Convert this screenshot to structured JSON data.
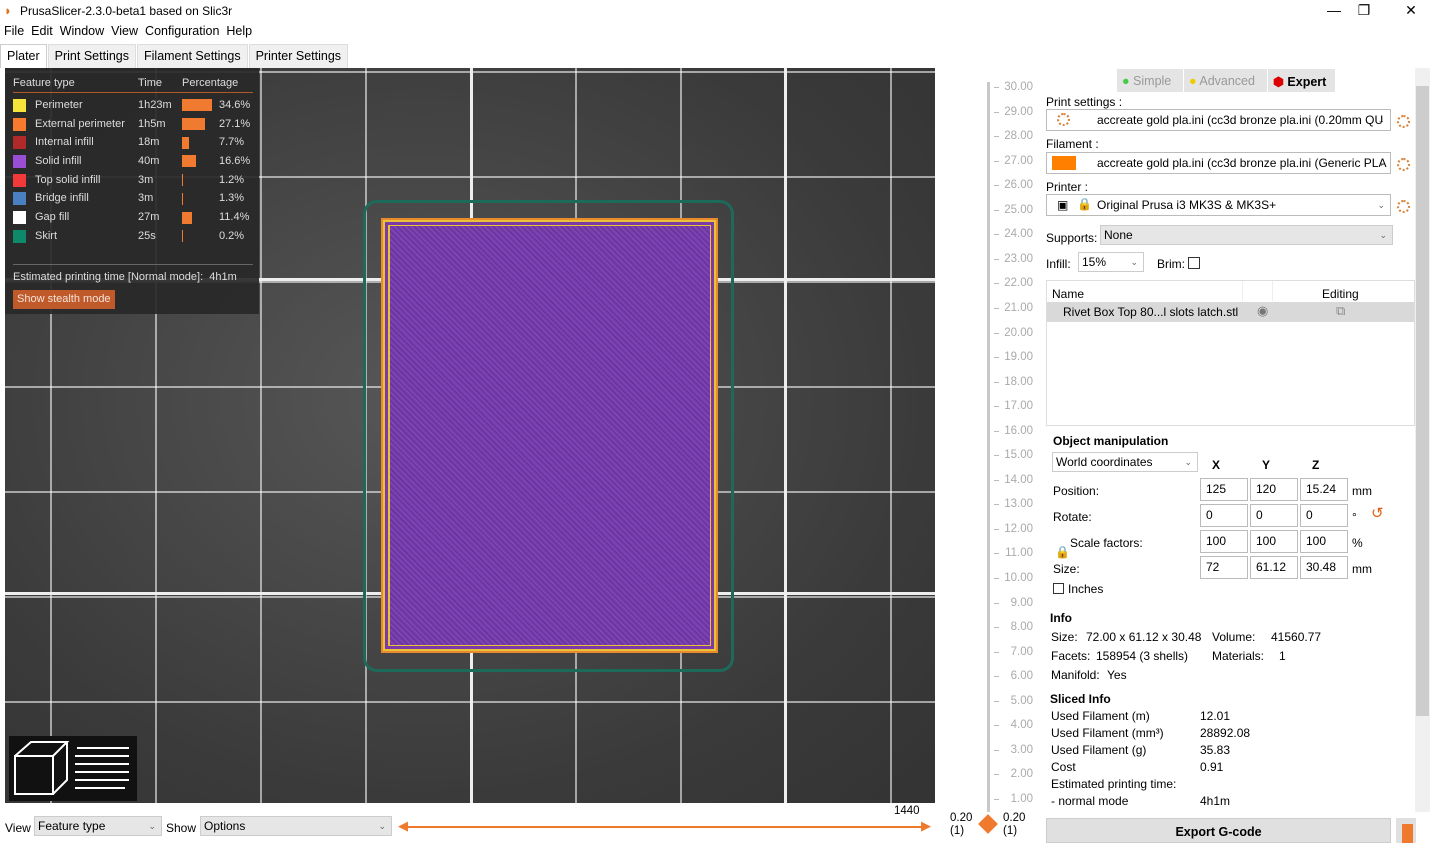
{
  "window": {
    "title": "PrusaSlicer-2.3.0-beta1 based on Slic3r",
    "minimize": "—",
    "maximize": "❐",
    "close": "✕"
  },
  "menu": [
    "File",
    "Edit",
    "Window",
    "View",
    "Configuration",
    "Help"
  ],
  "tabs": [
    "Plater",
    "Print Settings",
    "Filament Settings",
    "Printer Settings"
  ],
  "legend": {
    "headers": [
      "Feature type",
      "Time",
      "Percentage"
    ],
    "rows": [
      {
        "name": "Perimeter",
        "time": "1h23m",
        "pct": "34.6%",
        "value": 34.6,
        "color": "#f5e43a"
      },
      {
        "name": "External perimeter",
        "time": "1h5m",
        "pct": "27.1%",
        "value": 27.1,
        "color": "#f77b2e"
      },
      {
        "name": "Internal infill",
        "time": "18m",
        "pct": "7.7%",
        "value": 7.7,
        "color": "#b02a2a"
      },
      {
        "name": "Solid infill",
        "time": "40m",
        "pct": "16.6%",
        "value": 16.6,
        "color": "#9a4ed6"
      },
      {
        "name": "Top solid infill",
        "time": "3m",
        "pct": "1.2%",
        "value": 1.2,
        "color": "#f23a3a"
      },
      {
        "name": "Bridge infill",
        "time": "3m",
        "pct": "1.3%",
        "value": 1.3,
        "color": "#4a7fc2"
      },
      {
        "name": "Gap fill",
        "time": "27m",
        "pct": "11.4%",
        "value": 11.4,
        "color": "#ffffff"
      },
      {
        "name": "Skirt",
        "time": "25s",
        "pct": "0.2%",
        "value": 0.2,
        "color": "#0e8a6a"
      }
    ],
    "estimated_label": "Estimated printing time [Normal mode]:",
    "estimated_value": "4h1m",
    "stealth_button": "Show stealth mode"
  },
  "bottom": {
    "view_label": "View",
    "view_value": "Feature type",
    "show_label": "Show",
    "show_value": "Options",
    "slider_max": "1440"
  },
  "ruler": {
    "labels": [
      "30.00",
      "29.00",
      "28.00",
      "27.00",
      "26.00",
      "25.00",
      "24.00",
      "23.00",
      "22.00",
      "21.00",
      "20.00",
      "19.00",
      "18.00",
      "17.00",
      "16.00",
      "15.00",
      "14.00",
      "13.00",
      "12.00",
      "11.00",
      "10.00",
      "9.00",
      "8.00",
      "7.00",
      "6.00",
      "5.00",
      "4.00",
      "3.00",
      "2.00",
      "1.00"
    ],
    "low_left": "0.20",
    "low_left_sub": "(1)",
    "low_right": "0.20",
    "low_right_sub": "(1)"
  },
  "mode": {
    "simple": "Simple",
    "advanced": "Advanced",
    "expert": "Expert"
  },
  "print_settings": {
    "label": "Print settings :",
    "value": "accreate gold pla.ini (cc3d bronze pla.ini (0.20mm QU"
  },
  "filament": {
    "label": "Filament :",
    "value": "accreate gold pla.ini (cc3d bronze pla.ini (Generic PLA",
    "color": "#ff7f00"
  },
  "printer": {
    "label": "Printer :",
    "value": "Original Prusa i3 MK3S & MK3S+"
  },
  "supports": {
    "label": "Supports:",
    "value": "None"
  },
  "infill": {
    "label": "Infill:",
    "value": "15%"
  },
  "brim": {
    "label": "Brim:",
    "checked": false
  },
  "objects": {
    "col_name": "Name",
    "col_editing": "Editing",
    "items": [
      {
        "name": "Rivet Box Top 80...l slots latch.stl"
      }
    ]
  },
  "manip": {
    "title": "Object manipulation",
    "coords": "World coordinates",
    "x": "X",
    "y": "Y",
    "z": "Z",
    "position": {
      "label": "Position:",
      "values": [
        "125",
        "120",
        "15.24"
      ],
      "unit": "mm"
    },
    "rotate": {
      "label": "Rotate:",
      "values": [
        "0",
        "0",
        "0"
      ],
      "unit": "°"
    },
    "scale": {
      "label": "Scale factors:",
      "values": [
        "100",
        "100",
        "100"
      ],
      "unit": "%"
    },
    "size": {
      "label": "Size:",
      "values": [
        "72",
        "61.12",
        "30.48"
      ],
      "unit": "mm"
    },
    "inches": "Inches"
  },
  "info": {
    "title": "Info",
    "size_label": "Size:",
    "size": "72.00 x 61.12 x 30.48",
    "volume_label": "Volume:",
    "volume": "41560.77",
    "facets_label": "Facets:",
    "facets": "158954 (3 shells)",
    "materials_label": "Materials:",
    "materials": "1",
    "manifold_label": "Manifold:",
    "manifold": "Yes"
  },
  "sliced": {
    "title": "Sliced Info",
    "rows": [
      [
        "Used Filament (m)",
        "12.01"
      ],
      [
        "Used Filament (mm³)",
        "28892.08"
      ],
      [
        "Used Filament (g)",
        "35.83"
      ],
      [
        "Cost",
        "0.91"
      ],
      [
        "Estimated printing time:",
        ""
      ],
      [
        "- normal mode",
        "4h1m"
      ]
    ]
  },
  "export_button": "Export G-code"
}
